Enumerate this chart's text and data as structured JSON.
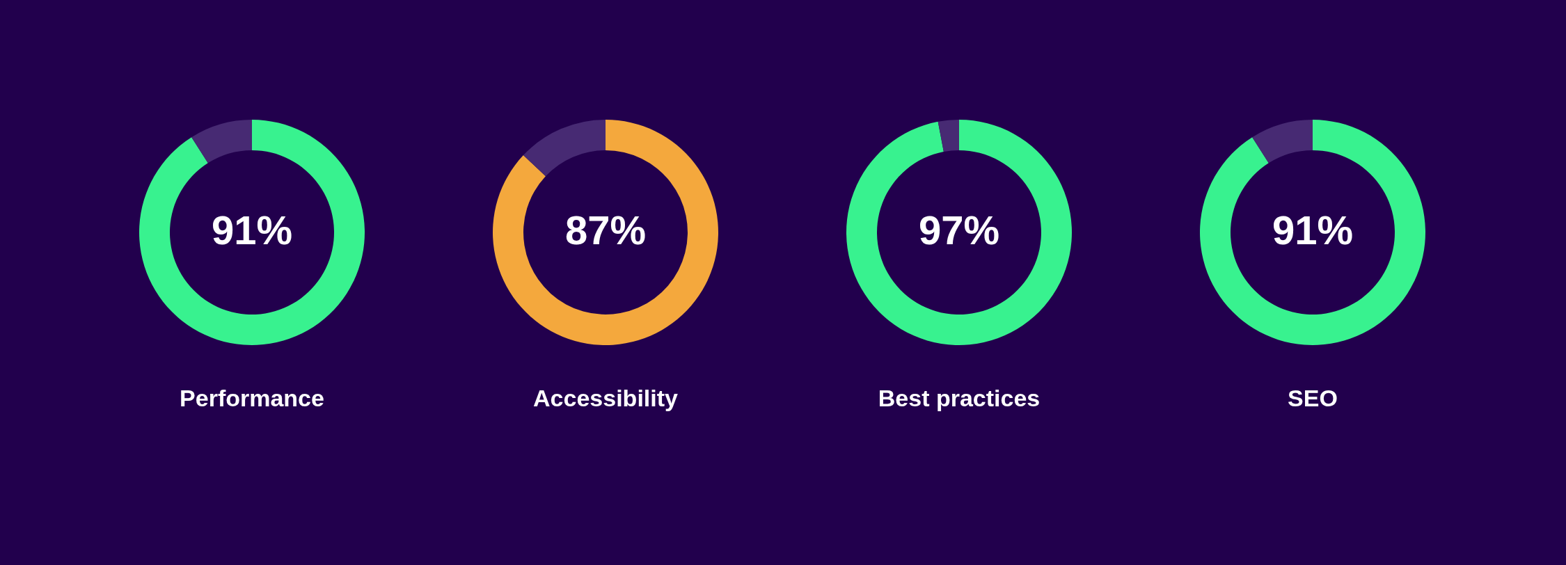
{
  "chart_data": [
    {
      "type": "donut",
      "title": "Performance",
      "categories": [
        null,
        null
      ],
      "values": [
        91,
        9
      ],
      "colors": [
        "#38f28f",
        "#472a73"
      ],
      "value_labels": [
        "91%",
        null
      ]
    },
    {
      "type": "donut",
      "title": "Accessibility",
      "categories": [
        null,
        null
      ],
      "values": [
        87,
        13
      ],
      "colors": [
        "#f4a83d",
        "#472a73"
      ],
      "value_labels": [
        "87%",
        null
      ]
    },
    {
      "type": "donut",
      "title": "Best practices",
      "categories": [
        null,
        null
      ],
      "values": [
        97,
        3
      ],
      "colors": [
        "#38f28f",
        "#472a73"
      ],
      "value_labels": [
        "97%",
        null
      ]
    },
    {
      "type": "donut",
      "title": "SEO",
      "categories": [
        null,
        null
      ],
      "values": [
        91,
        9
      ],
      "colors": [
        "#38f28f",
        "#472a73"
      ],
      "value_labels": [
        "91%",
        null
      ]
    }
  ]
}
